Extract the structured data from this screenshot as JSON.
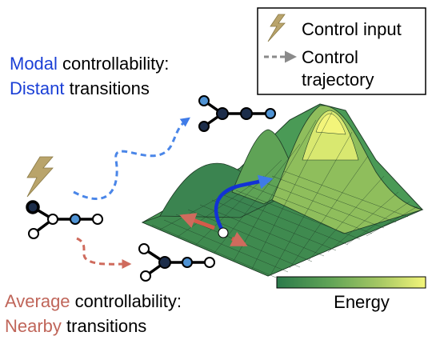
{
  "legend": {
    "control_input_label": "Control input",
    "control_trajectory_label_line1": "Control",
    "control_trajectory_label_line2": "trajectory"
  },
  "modal": {
    "keyword": "Modal",
    "rest_line1": " controllability:",
    "keyword2": "Distant",
    "rest_line2": " transitions",
    "color": "#1a3fd6"
  },
  "average": {
    "keyword": "Average",
    "rest_line1": " controllability:",
    "keyword2": "Nearby",
    "rest_line2": " transitions",
    "color": "#c0665a"
  },
  "colorbar": {
    "label": "Energy",
    "colors": [
      "#2b7a4b",
      "#5fa356",
      "#a8c964",
      "#f3f57a"
    ]
  },
  "icons": [
    "lightning-bolt-icon",
    "dashed-arrow-icon",
    "graph-network-icon"
  ]
}
